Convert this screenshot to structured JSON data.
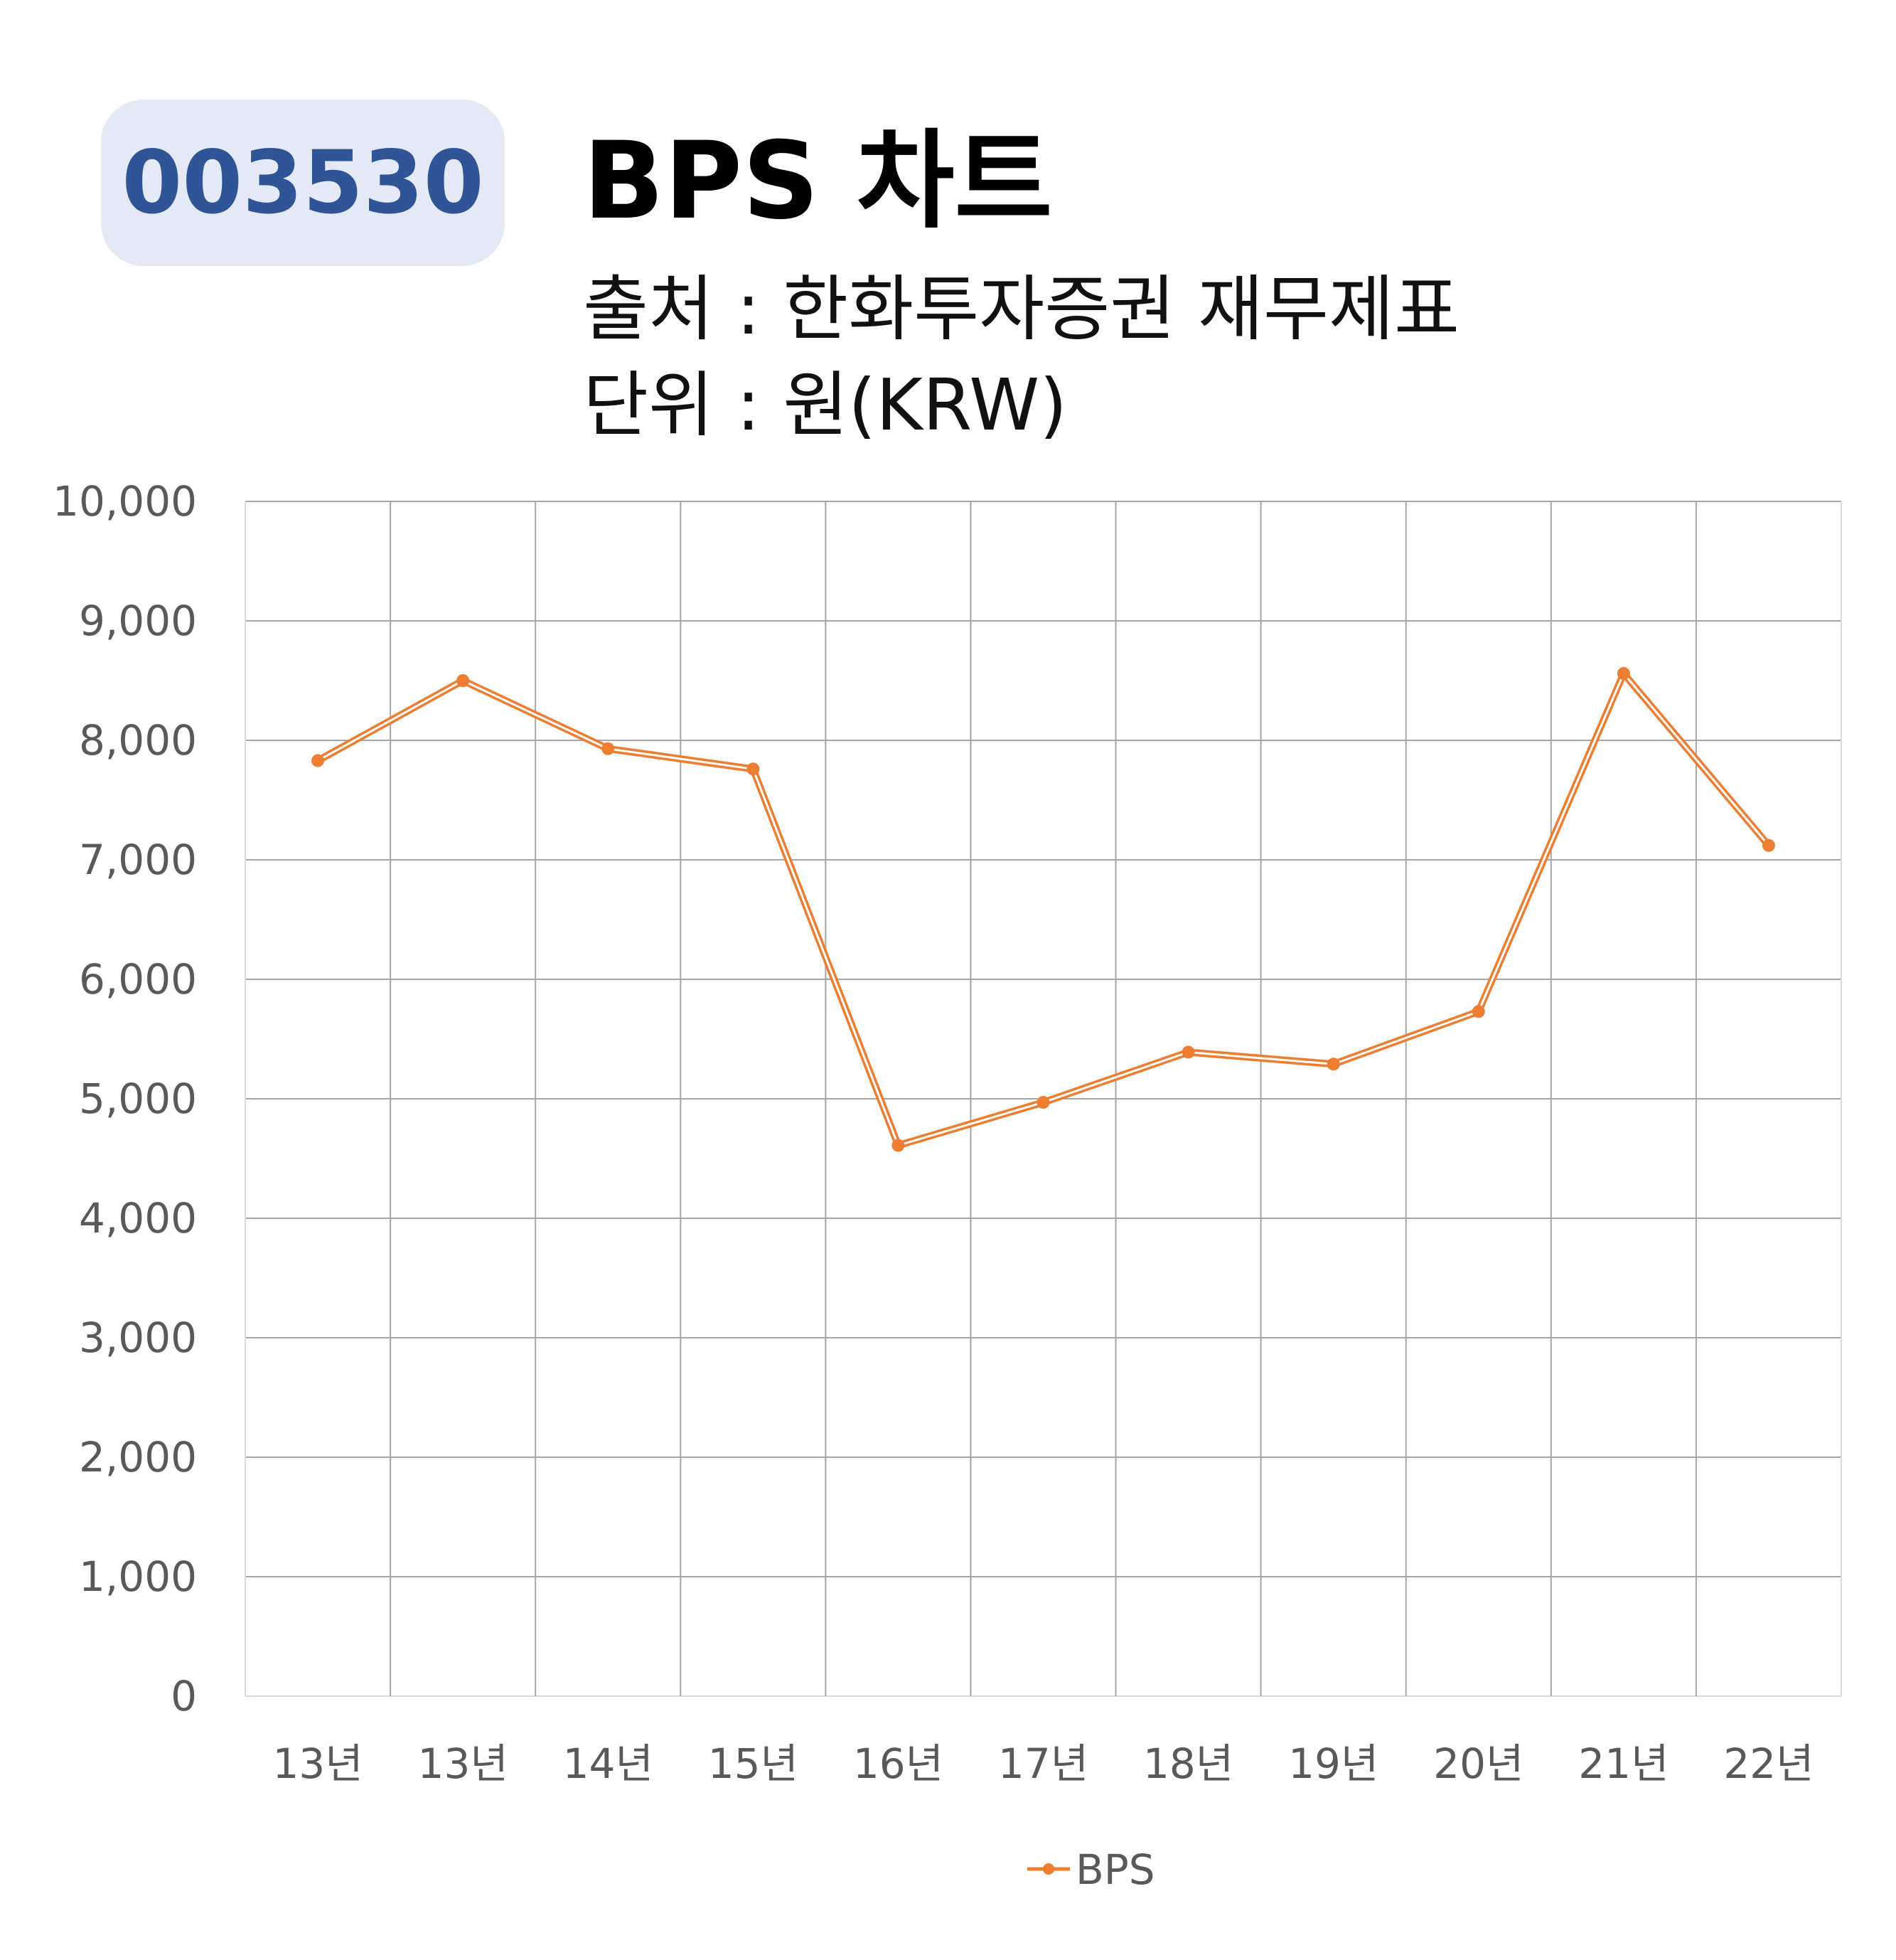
{
  "header": {
    "ticker": "003530",
    "title": "BPS 차트",
    "source": "출처 : 한화투자증권 재무제표",
    "unit": "단위 : 원(KRW)"
  },
  "colors": {
    "badge_bg": "#e4e9f5",
    "badge_text": "#2f5597",
    "series": "#ed7d31",
    "grid": "#a6a6a6",
    "tick_text": "#595959"
  },
  "chart_data": {
    "type": "line",
    "title": "BPS 차트",
    "categories": [
      "13년",
      "13년",
      "14년",
      "15년",
      "16년",
      "17년",
      "18년",
      "19년",
      "20년",
      "21년",
      "22년"
    ],
    "series": [
      {
        "name": "BPS",
        "values": [
          7830,
          8500,
          7930,
          7760,
          4610,
          4970,
          5390,
          5290,
          5730,
          8560,
          7120
        ]
      }
    ],
    "ylim": [
      0,
      10000
    ],
    "yticks": [
      "0",
      "1,000",
      "2,000",
      "3,000",
      "4,000",
      "5,000",
      "6,000",
      "7,000",
      "8,000",
      "9,000",
      "10,000"
    ],
    "grid": true,
    "legend": "bottom"
  }
}
